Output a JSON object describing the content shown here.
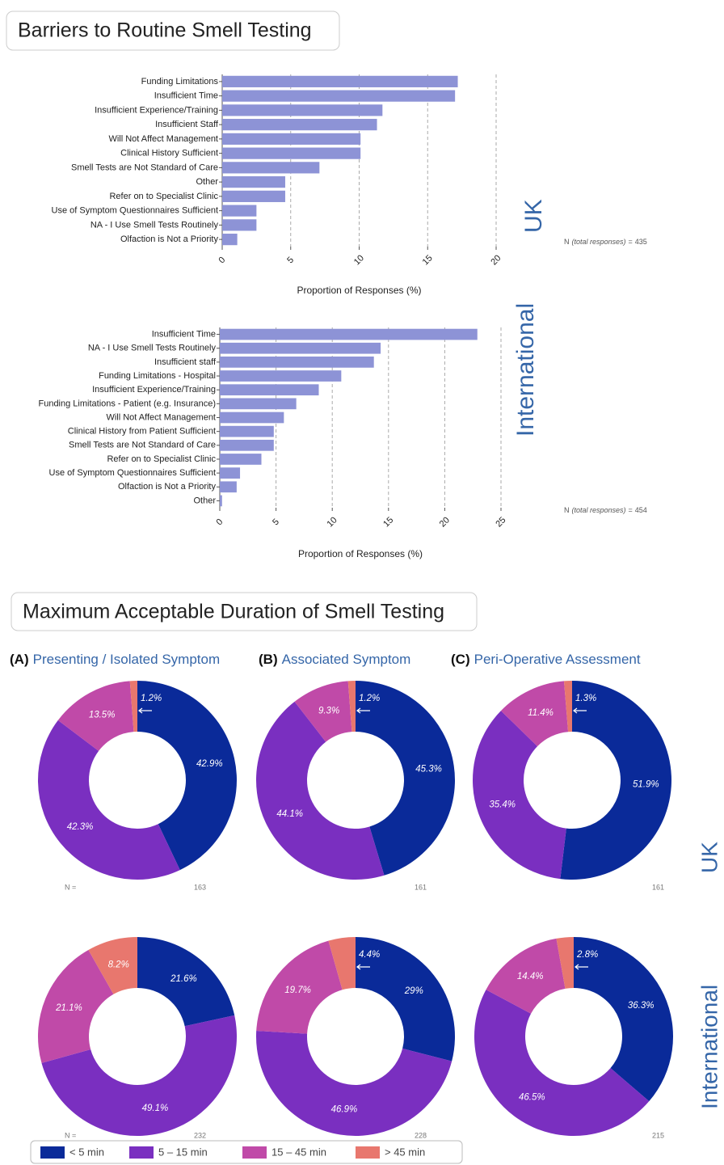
{
  "barriers_title": "Barriers to Routine Smell Testing",
  "duration_title": "Maximum Acceptable Duration of Smell Testing",
  "panels": [
    {
      "letter": "(A)",
      "title": "Presenting / Isolated Symptom"
    },
    {
      "letter": "(B)",
      "title": "Associated Symptom"
    },
    {
      "letter": "(C)",
      "title": "Peri-Operative Assessment"
    }
  ],
  "n_label": "N =",
  "duration_categories": [
    "< 5 min",
    "5 – 15 min",
    "15 – 45 min",
    "> 45 min"
  ],
  "duration_colors": [
    "#0a2a99",
    "#7a2fc0",
    "#c04aa8",
    "#e8776e"
  ],
  "chart_data": [
    {
      "type": "hbar",
      "region": "UK",
      "color": "#8d93d6",
      "categories": [
        "Funding Limitations",
        "Insufficient Time",
        "Insufficient Experience/Training",
        "Insufficient Staff",
        "Will Not Affect Management",
        "Clinical History Sufficient",
        "Smell Tests are Not Standard of Care",
        "Other",
        "Refer on to Specialist Clinic",
        "Use of Symptom Questionnaires Sufficient",
        "NA - I Use Smell Tests Routinely",
        "Olfaction is Not a Priority"
      ],
      "values": [
        17.2,
        17.0,
        11.7,
        11.3,
        10.1,
        10.1,
        7.1,
        4.6,
        4.6,
        2.5,
        2.5,
        1.1
      ],
      "xlabel": "Proportion of Responses (%)",
      "xlim": [
        0,
        20
      ],
      "xticks": [
        0,
        5,
        10,
        15,
        20
      ],
      "grid": true,
      "n_prefix": "N",
      "n_note": "(total responses)",
      "n_sign": "=",
      "n": 435
    },
    {
      "type": "hbar",
      "region": "International",
      "color": "#8d93d6",
      "categories": [
        "Insufficient Time",
        "NA - I Use Smell Tests Routinely",
        "Insufficient staff",
        "Funding Limitations - Hospital",
        "Insufficient Experience/Training",
        "Funding Limitations - Patient (e.g. Insurance)",
        "Will Not Affect Management",
        "Clinical History from Patient Sufficient",
        "Smell Tests are Not Standard of Care",
        "Refer on to Specialist Clinic",
        "Use of Symptom Questionnaires Sufficient",
        "Olfaction is Not a Priority",
        "Other"
      ],
      "values": [
        22.9,
        14.3,
        13.7,
        10.8,
        8.8,
        6.8,
        5.7,
        4.8,
        4.8,
        3.7,
        1.8,
        1.5,
        0.2
      ],
      "xlabel": "Proportion of Responses (%)",
      "xlim": [
        0,
        25
      ],
      "xticks": [
        0,
        5,
        10,
        15,
        20,
        25
      ],
      "grid": true,
      "n_prefix": "N",
      "n_note": "(total responses)",
      "n_sign": "=",
      "n": 454
    },
    {
      "type": "donut",
      "values": [
        42.9,
        42.3,
        13.5,
        1.2
      ],
      "value_labels": [
        "42.9%",
        "42.3%",
        "13.5%",
        "1.2%"
      ],
      "n": 163
    },
    {
      "type": "donut",
      "values": [
        45.3,
        44.1,
        9.3,
        1.2
      ],
      "value_labels": [
        "45.3%",
        "44.1%",
        "9.3%",
        "1.2%"
      ],
      "n": 161
    },
    {
      "type": "donut",
      "values": [
        51.9,
        35.4,
        11.4,
        1.3
      ],
      "value_labels": [
        "51.9%",
        "35.4%",
        "11.4%",
        "1.3%"
      ],
      "n": 161
    },
    {
      "type": "donut",
      "values": [
        21.6,
        49.1,
        21.1,
        8.2
      ],
      "value_labels": [
        "21.6%",
        "49.1%",
        "21.1%",
        "8.2%"
      ],
      "n": 232
    },
    {
      "type": "donut",
      "values": [
        29,
        46.9,
        19.7,
        4.4
      ],
      "value_labels": [
        "29%",
        "46.9%",
        "19.7%",
        "4.4%"
      ],
      "n": 228
    },
    {
      "type": "donut",
      "values": [
        36.3,
        46.5,
        14.4,
        2.8
      ],
      "value_labels": [
        "36.3%",
        "46.5%",
        "14.4%",
        "2.8%"
      ],
      "n": 215
    }
  ]
}
